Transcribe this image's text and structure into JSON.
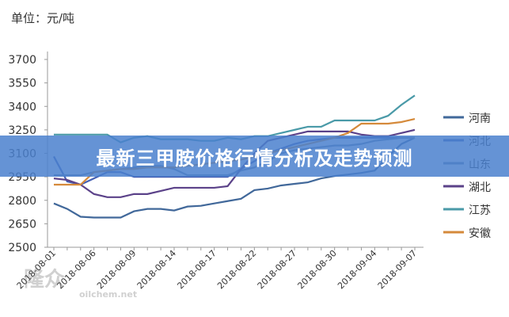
{
  "chart_data": {
    "type": "line",
    "unit_label": "单位：元/吨",
    "ylim": [
      2500,
      3700
    ],
    "yticks": [
      2500,
      2650,
      2800,
      2950,
      3100,
      3250,
      3400,
      3550,
      3700
    ],
    "x": [
      "2018-08-01",
      "2018-08-02",
      "2018-08-03",
      "2018-08-06",
      "2018-08-07",
      "2018-08-08",
      "2018-08-09",
      "2018-08-10",
      "2018-08-13",
      "2018-08-14",
      "2018-08-15",
      "2018-08-16",
      "2018-08-17",
      "2018-08-20",
      "2018-08-21",
      "2018-08-22",
      "2018-08-23",
      "2018-08-24",
      "2018-08-27",
      "2018-08-28",
      "2018-08-29",
      "2018-08-30",
      "2018-08-31",
      "2018-09-03",
      "2018-09-04",
      "2018-09-05",
      "2018-09-06",
      "2018-09-07"
    ],
    "xtick_labels": [
      "2018-08-01",
      "2018-08-06",
      "2018-08-09",
      "2018-08-14",
      "2018-08-17",
      "2018-08-22",
      "2018-08-27",
      "2018-08-30",
      "2018-09-04",
      "2018-09-07"
    ],
    "legend_position": "right",
    "grid": false,
    "series": [
      {
        "name": "河南",
        "color": "#41689a",
        "values": [
          2780,
          2745,
          2695,
          2690,
          2690,
          2690,
          2730,
          2745,
          2745,
          2735,
          2760,
          2765,
          2780,
          2795,
          2810,
          2865,
          2875,
          2895,
          2905,
          2915,
          2940,
          2955,
          2965,
          2975,
          2990,
          3080,
          3160,
          3200
        ]
      },
      {
        "name": "河北",
        "color": "#4560b3",
        "values": [
          3080,
          2920,
          2900,
          2940,
          2980,
          2980,
          2950,
          2950,
          2950,
          2950,
          2950,
          2950,
          2950,
          2950,
          3000,
          3050,
          3100,
          3130,
          3160,
          3180,
          3190,
          3200,
          3200,
          3200,
          3200,
          3200,
          3200,
          3200
        ]
      },
      {
        "name": "山东",
        "color": "#6a86a8",
        "values": [
          2960,
          2960,
          2960,
          2980,
          2990,
          3000,
          3010,
          3020,
          3020,
          3000,
          2960,
          2960,
          2960,
          2960,
          2990,
          3010,
          3050,
          3100,
          3120,
          3130,
          3140,
          3150,
          3150,
          3160,
          3180,
          3190,
          3200,
          3200
        ]
      },
      {
        "name": "湖北",
        "color": "#5b4289",
        "values": [
          2940,
          2930,
          2900,
          2840,
          2820,
          2820,
          2840,
          2840,
          2860,
          2880,
          2880,
          2880,
          2880,
          2890,
          3000,
          3100,
          3180,
          3200,
          3220,
          3240,
          3240,
          3240,
          3240,
          3220,
          3210,
          3210,
          3230,
          3250
        ]
      },
      {
        "name": "江苏",
        "color": "#4a9aa8",
        "values": [
          3220,
          3220,
          3220,
          3220,
          3220,
          3170,
          3200,
          3210,
          3190,
          3190,
          3190,
          3180,
          3180,
          3200,
          3190,
          3210,
          3210,
          3230,
          3250,
          3270,
          3270,
          3310,
          3310,
          3310,
          3310,
          3340,
          3410,
          3470
        ]
      },
      {
        "name": "安徽",
        "color": "#d58a3b",
        "values": [
          2900,
          2900,
          2900,
          2980,
          2990,
          3000,
          3000,
          3010,
          3010,
          3010,
          3020,
          3030,
          3040,
          3050,
          3060,
          3080,
          3100,
          3120,
          3140,
          3160,
          3180,
          3200,
          3230,
          3290,
          3290,
          3290,
          3300,
          3320
        ]
      }
    ]
  },
  "banner": {
    "title": "最新三甲胺价格行情分析及走势预测",
    "color": "#4a80ce"
  },
  "watermark": {
    "text": "隆众",
    "sub": "oilchem.net"
  }
}
